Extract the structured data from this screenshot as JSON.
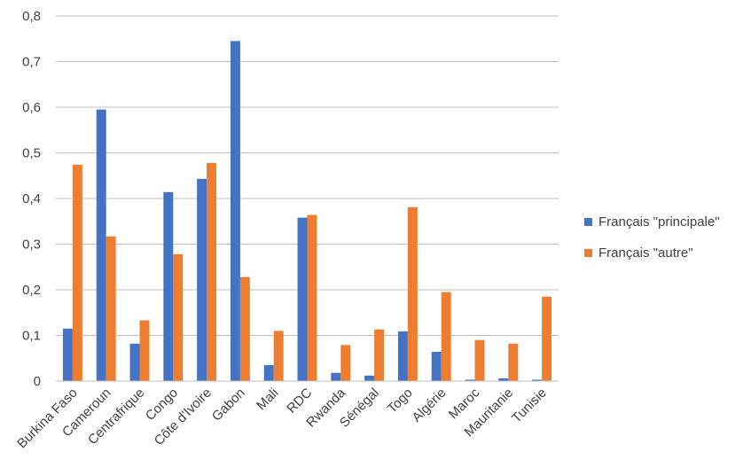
{
  "chart_data": {
    "type": "bar",
    "categories": [
      "Burkina Faso",
      "Cameroun",
      "Centrafrique",
      "Congo",
      "Côte d'Ivoire",
      "Gabon",
      "Mali",
      "RDC",
      "Rwanda",
      "Sénégal",
      "Togo",
      "Algérie",
      "Maroc",
      "Mauritanie",
      "Tunisie"
    ],
    "series": [
      {
        "name": "Français \"principale\"",
        "color": "#4472c4",
        "values": [
          0.115,
          0.595,
          0.082,
          0.414,
          0.443,
          0.745,
          0.035,
          0.358,
          0.018,
          0.012,
          0.109,
          0.064,
          0.003,
          0.006,
          0.003
        ]
      },
      {
        "name": "Français \"autre\"",
        "color": "#ed7d31",
        "values": [
          0.474,
          0.317,
          0.133,
          0.278,
          0.478,
          0.228,
          0.11,
          0.364,
          0.079,
          0.113,
          0.381,
          0.195,
          0.09,
          0.082,
          0.185
        ]
      }
    ],
    "title": "",
    "xlabel": "",
    "ylabel": "",
    "ylim": [
      0,
      0.8
    ],
    "yticks": [
      "0",
      "0,1",
      "0,2",
      "0,3",
      "0,4",
      "0,5",
      "0,6",
      "0,7",
      "0,8"
    ],
    "grid": true,
    "legend": "right"
  }
}
